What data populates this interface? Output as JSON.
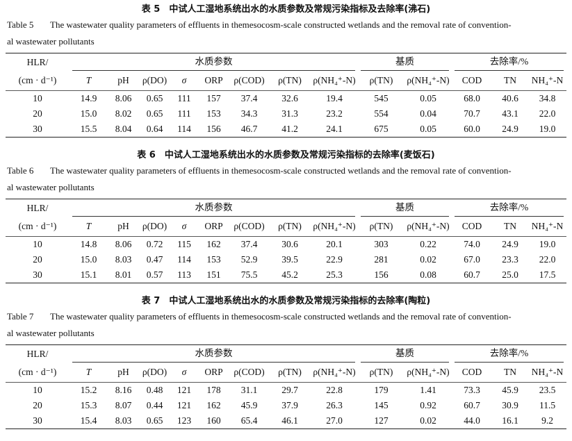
{
  "tables": [
    {
      "title_cn": "表 5　中试人工湿地系统出水的水质参数及常规污染指标及去除率(沸石)",
      "label_en": "Table 5",
      "caption_en_1": "The wastewater quality parameters of effluents in themesocosm-scale constructed wetlands and the removal rate of convention-",
      "caption_en_2": "al wastewater pollutants",
      "rows": [
        [
          "10",
          "14.9",
          "8.06",
          "0.65",
          "111",
          "157",
          "37.4",
          "32.6",
          "19.4",
          "545",
          "0.05",
          "68.0",
          "40.6",
          "34.8"
        ],
        [
          "20",
          "15.0",
          "8.02",
          "0.65",
          "111",
          "153",
          "34.3",
          "31.3",
          "23.2",
          "554",
          "0.04",
          "70.7",
          "43.1",
          "22.0"
        ],
        [
          "30",
          "15.5",
          "8.04",
          "0.64",
          "114",
          "156",
          "46.7",
          "41.2",
          "24.1",
          "675",
          "0.05",
          "60.0",
          "24.9",
          "19.0"
        ]
      ]
    },
    {
      "title_cn": "表 6　中试人工湿地系统出水的水质参数及常规污染指标的去除率(麦饭石)",
      "label_en": "Table 6",
      "caption_en_1": "The wastewater quality parameters of effluents in themesocosm-scale constructed wetlands and the removal rate of convention-",
      "caption_en_2": "al wastewater pollutants",
      "rows": [
        [
          "10",
          "14.8",
          "8.06",
          "0.72",
          "115",
          "162",
          "37.4",
          "30.6",
          "20.1",
          "303",
          "0.22",
          "74.0",
          "24.9",
          "19.0"
        ],
        [
          "20",
          "15.0",
          "8.03",
          "0.47",
          "114",
          "153",
          "52.9",
          "39.5",
          "22.9",
          "281",
          "0.02",
          "67.0",
          "23.3",
          "22.0"
        ],
        [
          "30",
          "15.1",
          "8.01",
          "0.57",
          "113",
          "151",
          "75.5",
          "45.2",
          "25.3",
          "156",
          "0.08",
          "60.7",
          "25.0",
          "17.5"
        ]
      ]
    },
    {
      "title_cn": "表 7　中试人工湿地系统出水的水质参数及常规污染指标的去除率(陶粒)",
      "label_en": "Table 7",
      "caption_en_1": "The wastewater quality parameters of effluents in themesocosm-scale constructed wetlands and the removal rate of convention-",
      "caption_en_2": "al wastewater pollutants",
      "rows": [
        [
          "10",
          "15.2",
          "8.16",
          "0.48",
          "121",
          "178",
          "31.1",
          "29.7",
          "22.8",
          "179",
          "1.41",
          "73.3",
          "45.9",
          "23.5"
        ],
        [
          "20",
          "15.3",
          "8.07",
          "0.44",
          "121",
          "162",
          "45.9",
          "37.9",
          "26.3",
          "145",
          "0.92",
          "60.7",
          "30.9",
          "11.5"
        ],
        [
          "30",
          "15.4",
          "8.03",
          "0.65",
          "123",
          "160",
          "65.4",
          "46.1",
          "27.0",
          "127",
          "0.02",
          "44.0",
          "16.1",
          "9.2"
        ]
      ]
    }
  ],
  "header": {
    "hlr_1": "HLR/",
    "hlr_2": "(cm · d⁻¹)",
    "groups": [
      "水质参数",
      "基质",
      "去除率/%"
    ],
    "columns": [
      "T",
      "pH",
      "ρ(DO)",
      "σ",
      "ORP",
      "ρ(COD)",
      "ρ(TN)",
      "ρ(NH₄⁺-N)",
      "ρ(TN)",
      "ρ(NH₄⁺-N)",
      "COD",
      "TN",
      "NH₄⁺-N"
    ]
  }
}
